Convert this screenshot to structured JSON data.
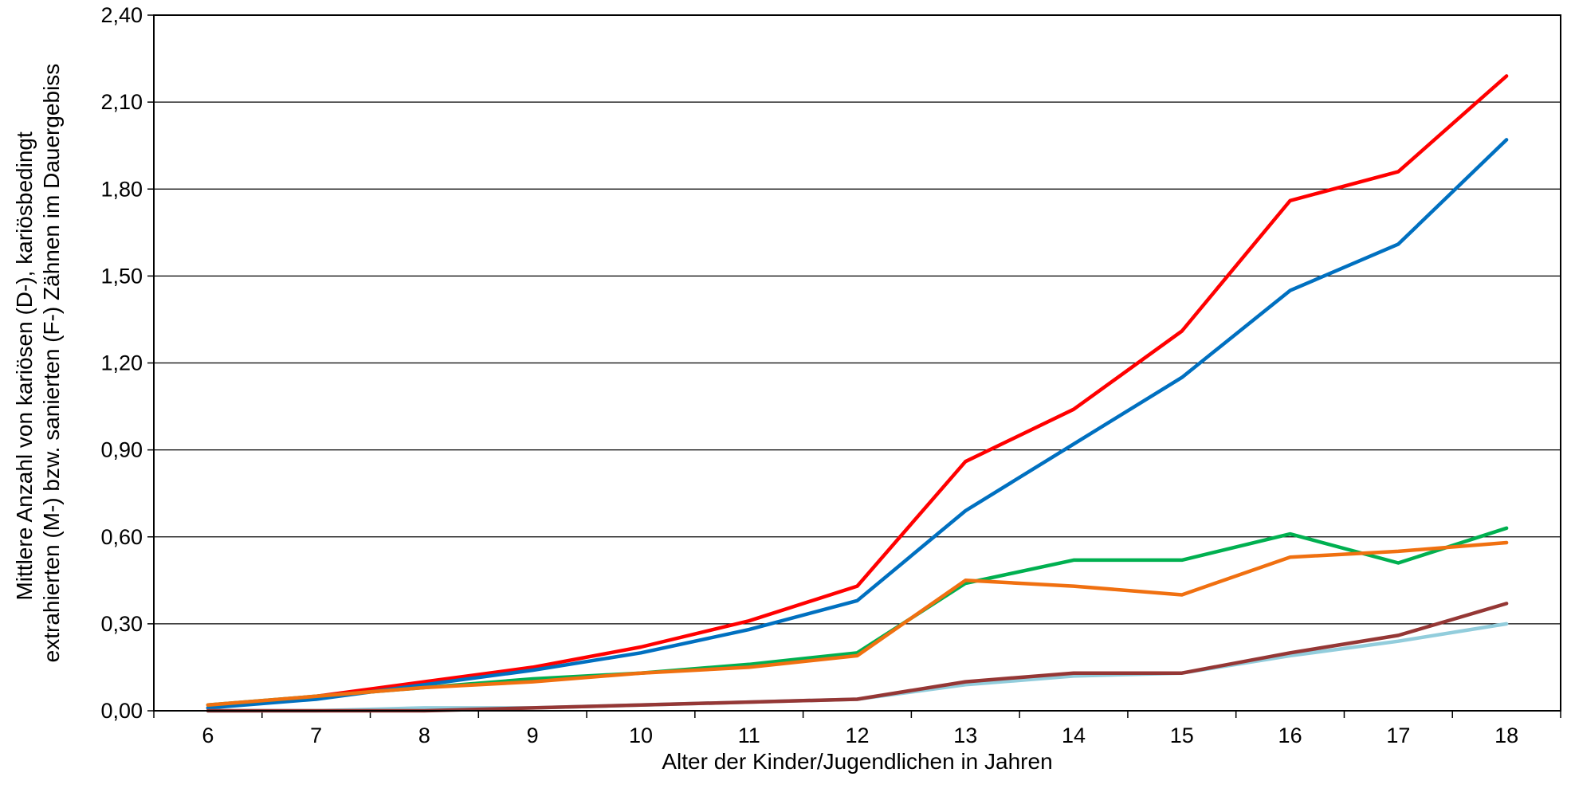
{
  "chart_data": {
    "type": "line",
    "title": "",
    "xlabel": "Alter der Kinder/Jugendlichen in Jahren",
    "ylabel_lines": [
      "Mittlere Anzahl von kariösen (D-), kariösbedingt",
      "extrahierten (M-) bzw. sanierten (F-) Zähnen im  Dauergebiss"
    ],
    "categories": [
      "6",
      "7",
      "8",
      "9",
      "10",
      "11",
      "12",
      "13",
      "14",
      "15",
      "16",
      "17",
      "18"
    ],
    "y_ticks": [
      "0,00",
      "0,30",
      "0,60",
      "0,90",
      "1,20",
      "1,50",
      "1,80",
      "2,10",
      "2,40"
    ],
    "ylim": [
      0,
      2.4
    ],
    "grid": true,
    "legend": "none",
    "series": [
      {
        "color": "#ff0000",
        "values": [
          0.01,
          0.05,
          0.1,
          0.15,
          0.22,
          0.31,
          0.43,
          0.86,
          1.04,
          1.31,
          1.76,
          1.86,
          2.19
        ]
      },
      {
        "color": "#0070c0",
        "values": [
          0.01,
          0.04,
          0.09,
          0.14,
          0.2,
          0.28,
          0.38,
          0.69,
          0.92,
          1.15,
          1.45,
          1.61,
          1.97
        ]
      },
      {
        "color": "#00b050",
        "values": [
          0.02,
          0.05,
          0.08,
          0.11,
          0.13,
          0.16,
          0.2,
          0.44,
          0.52,
          0.52,
          0.61,
          0.51,
          0.63
        ]
      },
      {
        "color": "#f07010",
        "values": [
          0.02,
          0.05,
          0.08,
          0.1,
          0.13,
          0.15,
          0.19,
          0.45,
          0.43,
          0.4,
          0.53,
          0.55,
          0.58
        ]
      },
      {
        "color": "#92cddc",
        "values": [
          0.0,
          0.0,
          0.01,
          0.01,
          0.02,
          0.03,
          0.04,
          0.09,
          0.12,
          0.13,
          0.19,
          0.24,
          0.3
        ]
      },
      {
        "color": "#953735",
        "values": [
          0.0,
          0.0,
          0.0,
          0.01,
          0.02,
          0.03,
          0.04,
          0.1,
          0.13,
          0.13,
          0.2,
          0.26,
          0.37
        ]
      }
    ]
  }
}
